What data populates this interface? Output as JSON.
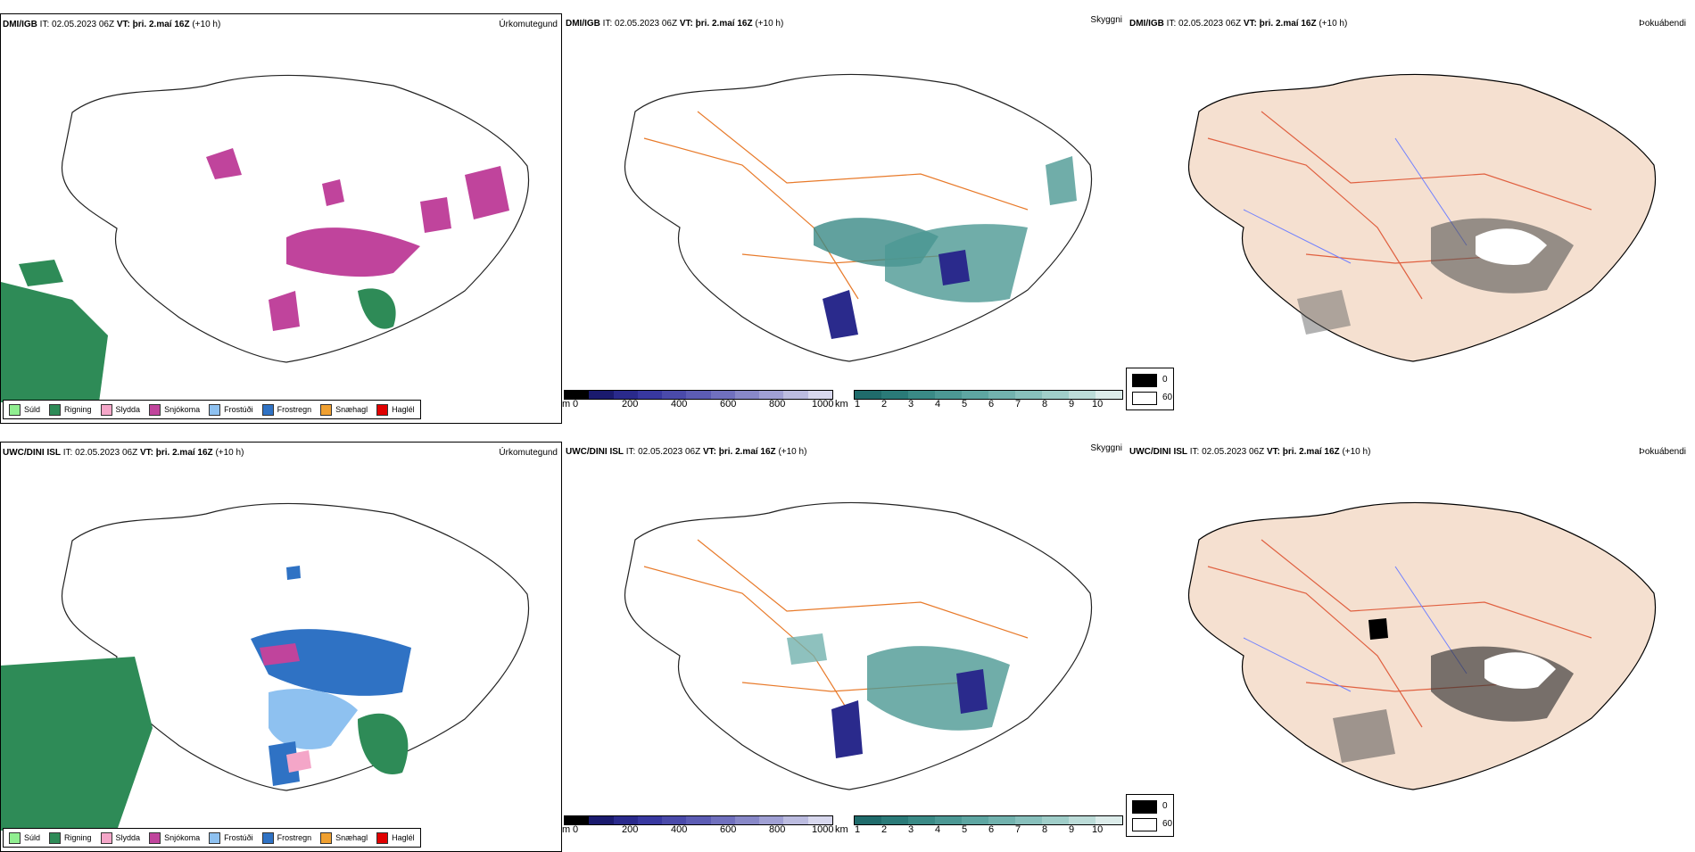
{
  "rows": [
    {
      "model": "DMI/IGB",
      "it_label": "IT:",
      "it": "02.05.2023 06Z",
      "vt_label": "VT:",
      "vt": "þri. 2.maí 16Z",
      "lead": "(+10 h)"
    },
    {
      "model": "UWC/DINI ISL",
      "it_label": "IT:",
      "it": "02.05.2023 06Z",
      "vt_label": "VT:",
      "vt": "þri. 2.maí 16Z",
      "lead": "(+10 h)"
    }
  ],
  "panels": {
    "precip_title": "Úrkomutegund",
    "cloud_title": "Skyggni",
    "fog_title": "Þokuábendi"
  },
  "precip_legend": [
    {
      "label": "Súld",
      "color": "#90ee90"
    },
    {
      "label": "Rigning",
      "color": "#2e8b57"
    },
    {
      "label": "Slydda",
      "color": "#f4a6c8"
    },
    {
      "label": "Snjókoma",
      "color": "#c0449c"
    },
    {
      "label": "Frostúði",
      "color": "#8ec1f0"
    },
    {
      "label": "Frostregn",
      "color": "#2f72c4"
    },
    {
      "label": "Snæhagl",
      "color": "#f0a030"
    },
    {
      "label": "Haglél",
      "color": "#e00000"
    }
  ],
  "cloudbase_bar": {
    "unit": "m",
    "ticks": [
      "0",
      "200",
      "400",
      "600",
      "800",
      "1000"
    ],
    "colors": [
      "#000000",
      "#1a1a6e",
      "#2a2a8c",
      "#3838a0",
      "#4a4aaa",
      "#5c5cb4",
      "#7070be",
      "#8888c8",
      "#a0a0d4",
      "#bcbce0",
      "#d8d8ee"
    ]
  },
  "visibility_bar": {
    "unit": "km",
    "ticks": [
      "1",
      "2",
      "3",
      "4",
      "5",
      "6",
      "7",
      "8",
      "9",
      "10"
    ],
    "colors": [
      "#1f6b6b",
      "#2a7a78",
      "#3a8a86",
      "#4c9894",
      "#5ea6a2",
      "#72b2ae",
      "#88c0bc",
      "#a0cec9",
      "#bcdcd8",
      "#dcecea"
    ]
  },
  "fog_legend": [
    {
      "value": "0",
      "color": "#000000"
    },
    {
      "value": "60",
      "color": "#ffffff"
    }
  ],
  "colors": {
    "land_fog": "#f5e0d0",
    "roads": "#e87a2a",
    "rivers": "#7080ff",
    "coast": "#000000"
  }
}
